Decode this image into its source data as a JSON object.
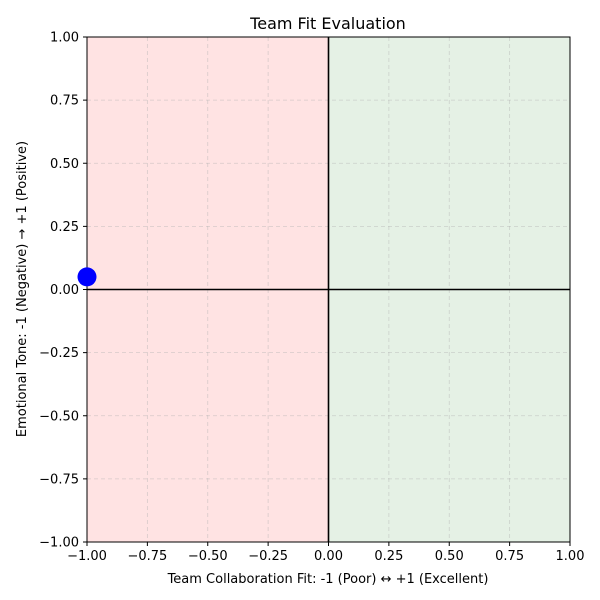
{
  "chart_data": {
    "type": "scatter",
    "title": "Team Fit Evaluation",
    "xlabel": "Team Collaboration Fit: -1 (Poor) ↔ +1 (Excellent)",
    "ylabel": "Emotional Tone: -1 (Negative) → +1 (Positive)",
    "xlim": [
      -1.0,
      1.0
    ],
    "ylim": [
      -1.0,
      1.0
    ],
    "x_ticks": [
      "−1.00",
      "−0.75",
      "−0.50",
      "−0.25",
      "0.00",
      "0.25",
      "0.50",
      "0.75",
      "1.00"
    ],
    "y_ticks": [
      "−1.00",
      "−0.75",
      "−0.50",
      "−0.25",
      "0.00",
      "0.25",
      "0.50",
      "0.75",
      "1.00"
    ],
    "x_tick_values": [
      -1.0,
      -0.75,
      -0.5,
      -0.25,
      0.0,
      0.25,
      0.5,
      0.75,
      1.0
    ],
    "y_tick_values": [
      -1.0,
      -0.75,
      -0.5,
      -0.25,
      0.0,
      0.25,
      0.5,
      0.75,
      1.0
    ],
    "grid": true,
    "regions": [
      {
        "x_from": -1.0,
        "x_to": 0.0,
        "color": "#ffe3e3"
      },
      {
        "x_from": 0.0,
        "x_to": 1.0,
        "color": "#e5f1e5"
      }
    ],
    "reference_lines": [
      {
        "axis": "x",
        "value": 0.0
      },
      {
        "axis": "y",
        "value": 0.0
      }
    ],
    "points": [
      {
        "x": -1.0,
        "y": 0.05,
        "color": "#0000ff"
      }
    ]
  }
}
